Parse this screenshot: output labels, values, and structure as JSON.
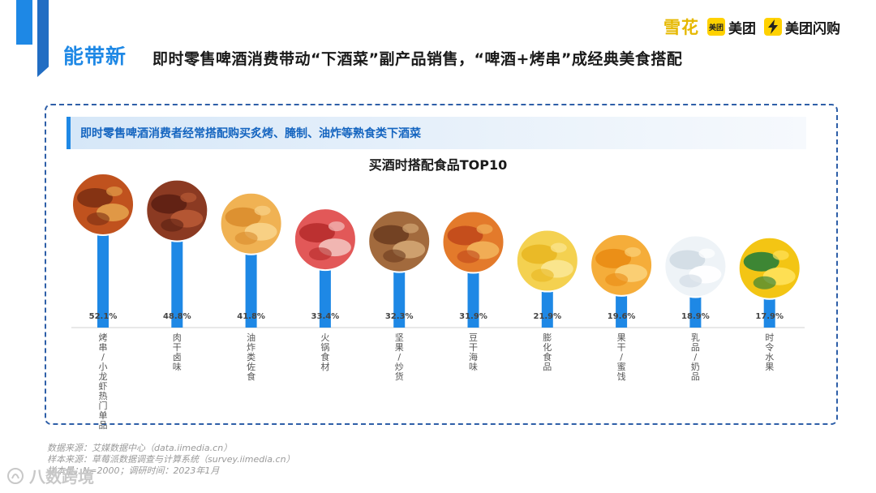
{
  "header": {
    "tag": "能带新",
    "title": "即时零售啤酒消费带动“下酒菜”副产品销售，“啤酒+烤串”成经典美食搭配"
  },
  "logos": {
    "xuehua": "雪花",
    "meituan_badge": "美团",
    "meituan": "美团",
    "shangou": "美团闪购"
  },
  "subheader": "即时零售啤酒消费者经常搭配购买炙烤、腌制、油炸等熟食类下酒菜",
  "colors": {
    "bar": "#1e88e5",
    "accent": "#1565c0"
  },
  "chart_data": {
    "type": "bar",
    "title": "买酒时搭配食品TOP10",
    "categories": [
      "烤串/小龙虾热门单品",
      "肉干卤味",
      "油炸类佐食",
      "火锅食材",
      "坚果/炒货",
      "豆干海味",
      "膨化食品",
      "果干/蜜饯",
      "乳品/奶品",
      "时令水果"
    ],
    "values": [
      52.1,
      48.8,
      41.8,
      33.4,
      32.3,
      31.9,
      21.9,
      19.6,
      18.9,
      17.9
    ],
    "value_labels": [
      "52.1%",
      "48.8%",
      "41.8%",
      "33.4%",
      "32.3%",
      "31.9%",
      "21.9%",
      "19.6%",
      "18.9%",
      "17.9%"
    ],
    "icons": [
      "skewer-food-icon",
      "jerky-icon",
      "fried-food-icon",
      "hotpot-icon",
      "nuts-icon",
      "tofu-seafood-icon",
      "chips-icon",
      "dried-fruit-icon",
      "milk-icon",
      "banana-icon"
    ]
  },
  "footnotes": [
    "数据来源：艾媒数据中心（data.iimedia.cn）",
    "样本来源：草莓派数据调查与计算系统（survey.iimedia.cn）",
    "样本量：N=2000；调研时间：2023年1月"
  ],
  "watermark": "八数跨境"
}
